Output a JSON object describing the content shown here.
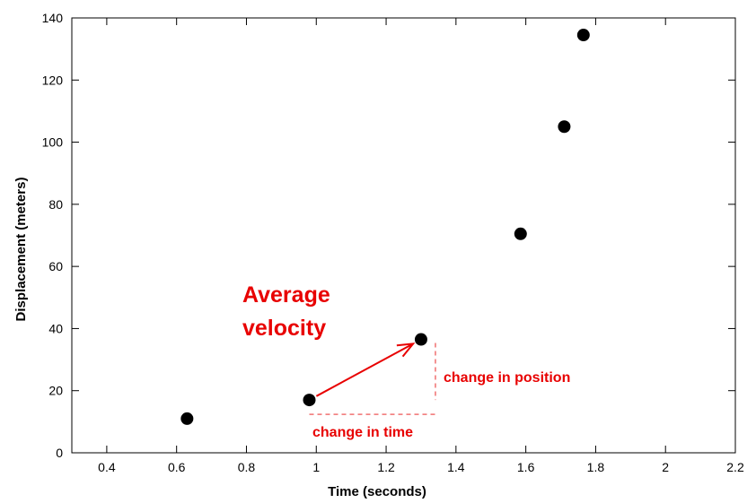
{
  "chart_data": {
    "type": "scatter",
    "xlabel": "Time (seconds)",
    "ylabel": "Displacement (meters)",
    "xlim": [
      0.3,
      2.2
    ],
    "ylim": [
      0,
      140
    ],
    "xticks": [
      0.4,
      0.6,
      0.8,
      1,
      1.2,
      1.4,
      1.6,
      1.8,
      2,
      2.2
    ],
    "xtick_labels": [
      "0.4",
      "0.6",
      "0.8",
      "1",
      "1.2",
      "1.4",
      "1.6",
      "1.8",
      "2",
      "2.2"
    ],
    "yticks": [
      0,
      20,
      40,
      60,
      80,
      100,
      120,
      140
    ],
    "ytick_labels": [
      "0",
      "20",
      "40",
      "60",
      "80",
      "100",
      "120",
      "140"
    ],
    "grid": false,
    "series": [
      {
        "points": [
          {
            "x": 0.63,
            "y": 11
          },
          {
            "x": 0.98,
            "y": 17
          },
          {
            "x": 1.3,
            "y": 36.5
          },
          {
            "x": 1.585,
            "y": 70.5
          },
          {
            "x": 1.71,
            "y": 105
          },
          {
            "x": 1.765,
            "y": 134.5
          }
        ]
      }
    ],
    "annotations": {
      "title_line1": "Average",
      "title_line2": "velocity",
      "change_in_time": "change in time",
      "change_in_position": "change in position"
    },
    "colors": {
      "points": "#000000",
      "annotation": "#e80000",
      "dashed": "#f07070"
    }
  }
}
